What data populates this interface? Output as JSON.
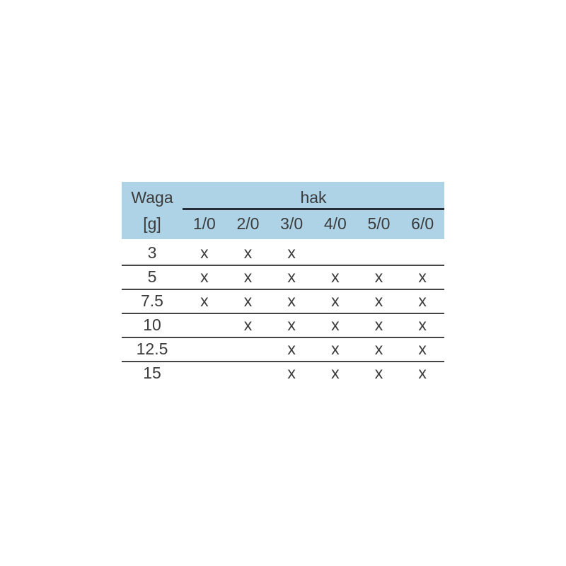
{
  "chart_data": {
    "type": "table",
    "header": {
      "row_label_line1": "Waga",
      "row_label_line2": "[g]",
      "column_group_label": "hak",
      "columns": [
        "1/0",
        "2/0",
        "3/0",
        "4/0",
        "5/0",
        "6/0"
      ]
    },
    "rows": [
      {
        "weight": "3",
        "marks": [
          "x",
          "x",
          "x",
          "",
          "",
          ""
        ]
      },
      {
        "weight": "5",
        "marks": [
          "x",
          "x",
          "x",
          "x",
          "x",
          "x"
        ]
      },
      {
        "weight": "7.5",
        "marks": [
          "x",
          "x",
          "x",
          "x",
          "x",
          "x"
        ]
      },
      {
        "weight": "10",
        "marks": [
          "",
          "x",
          "x",
          "x",
          "x",
          "x"
        ]
      },
      {
        "weight": "12.5",
        "marks": [
          "",
          "",
          "x",
          "x",
          "x",
          "x"
        ]
      },
      {
        "weight": "15",
        "marks": [
          "",
          "",
          "x",
          "x",
          "x",
          "x"
        ]
      }
    ],
    "colors": {
      "header_bg": "#aed3e6",
      "text": "#3b3b3b",
      "group_underline": "#262c38",
      "row_divider": "#454545"
    }
  }
}
